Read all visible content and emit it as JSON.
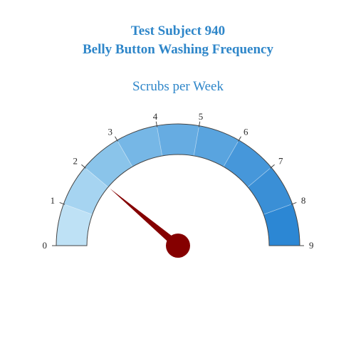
{
  "header": {
    "title_line1": "Test Subject 940",
    "title_line2": "Belly Button Washing Frequency",
    "subtitle": "Scrubs per Week",
    "title_color": "#2e86c9"
  },
  "chart_data": {
    "type": "gauge",
    "title": "Test Subject 940 Belly Button Washing Frequency",
    "subtitle": "Scrubs per Week",
    "min": 0,
    "max": 9,
    "value": 2,
    "ticks": [
      0,
      1,
      2,
      3,
      4,
      5,
      6,
      7,
      8,
      9
    ],
    "tick_labels": [
      "0",
      "1",
      "2",
      "3",
      "4",
      "5",
      "6",
      "7",
      "8",
      "9"
    ],
    "bands": [
      {
        "from": 0,
        "to": 1,
        "color": "#bee1f5"
      },
      {
        "from": 1,
        "to": 2,
        "color": "#a6d4f1"
      },
      {
        "from": 2,
        "to": 3,
        "color": "#8ac4ea"
      },
      {
        "from": 3,
        "to": 4,
        "color": "#76b7e6"
      },
      {
        "from": 4,
        "to": 5,
        "color": "#66ace2"
      },
      {
        "from": 5,
        "to": 6,
        "color": "#59a4df"
      },
      {
        "from": 6,
        "to": 7,
        "color": "#4697da"
      },
      {
        "from": 7,
        "to": 8,
        "color": "#3a8fd6"
      },
      {
        "from": 8,
        "to": 9,
        "color": "#2c87d4"
      }
    ],
    "needle_color": "#850000",
    "outline_color": "#444444"
  }
}
